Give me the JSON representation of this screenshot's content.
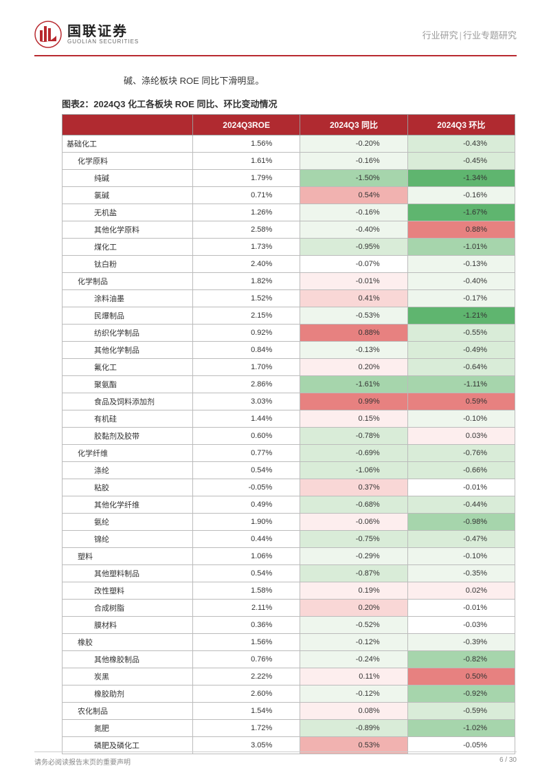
{
  "header": {
    "logo_cn": "国联证券",
    "logo_en": "GUOLIAN SECURITIES",
    "right_a": "行业研究",
    "right_b": "行业专题研究"
  },
  "intro": "碱、涤纶板块 ROE 同比下滑明显。",
  "chart_title": "图表2：2024Q3 化工各板块 ROE 同比、环比变动情况",
  "columns": [
    "",
    "2024Q3ROE",
    "2024Q3 同比",
    "2024Q3 环比"
  ],
  "colors": {
    "header_bg": "#b02a30",
    "heat": {
      "neg_strong": "#5fb56f",
      "neg_mid": "#a6d5ac",
      "neg_light": "#d9ecd8",
      "neg_faint": "#eef6ed",
      "neutral": "#ffffff",
      "pos_faint": "#fdeeee",
      "pos_light": "#f9d7d6",
      "pos_mid": "#f1b2b0",
      "pos_strong": "#e78180"
    }
  },
  "rows": [
    {
      "name": "基础化工",
      "indent": 0,
      "roe": "1.56%",
      "yoy": "-0.20%",
      "yoy_c": "neg_faint",
      "qoq": "-0.43%",
      "qoq_c": "neg_light"
    },
    {
      "name": "化学原料",
      "indent": 1,
      "roe": "1.61%",
      "yoy": "-0.16%",
      "yoy_c": "neg_faint",
      "qoq": "-0.45%",
      "qoq_c": "neg_light"
    },
    {
      "name": "纯碱",
      "indent": 2,
      "roe": "1.79%",
      "yoy": "-1.50%",
      "yoy_c": "neg_mid",
      "qoq": "-1.34%",
      "qoq_c": "neg_strong"
    },
    {
      "name": "氯碱",
      "indent": 2,
      "roe": "0.71%",
      "yoy": "0.54%",
      "yoy_c": "pos_mid",
      "qoq": "-0.16%",
      "qoq_c": "neg_faint"
    },
    {
      "name": "无机盐",
      "indent": 2,
      "roe": "1.26%",
      "yoy": "-0.16%",
      "yoy_c": "neg_faint",
      "qoq": "-1.67%",
      "qoq_c": "neg_strong"
    },
    {
      "name": "其他化学原料",
      "indent": 2,
      "roe": "2.58%",
      "yoy": "-0.40%",
      "yoy_c": "neg_faint",
      "qoq": "0.88%",
      "qoq_c": "pos_strong"
    },
    {
      "name": "煤化工",
      "indent": 2,
      "roe": "1.73%",
      "yoy": "-0.95%",
      "yoy_c": "neg_light",
      "qoq": "-1.01%",
      "qoq_c": "neg_mid"
    },
    {
      "name": "钛白粉",
      "indent": 2,
      "roe": "2.40%",
      "yoy": "-0.07%",
      "yoy_c": "neutral",
      "qoq": "-0.13%",
      "qoq_c": "neg_faint"
    },
    {
      "name": "化学制品",
      "indent": 1,
      "roe": "1.82%",
      "yoy": "-0.01%",
      "yoy_c": "pos_faint",
      "qoq": "-0.40%",
      "qoq_c": "neg_faint"
    },
    {
      "name": "涂料油墨",
      "indent": 2,
      "roe": "1.52%",
      "yoy": "0.41%",
      "yoy_c": "pos_light",
      "qoq": "-0.17%",
      "qoq_c": "neg_faint"
    },
    {
      "name": "民爆制品",
      "indent": 2,
      "roe": "2.15%",
      "yoy": "-0.53%",
      "yoy_c": "neg_faint",
      "qoq": "-1.21%",
      "qoq_c": "neg_strong"
    },
    {
      "name": "纺织化学制品",
      "indent": 2,
      "roe": "0.92%",
      "yoy": "0.88%",
      "yoy_c": "pos_strong",
      "qoq": "-0.55%",
      "qoq_c": "neg_light"
    },
    {
      "name": "其他化学制品",
      "indent": 2,
      "roe": "0.84%",
      "yoy": "-0.13%",
      "yoy_c": "neg_faint",
      "qoq": "-0.49%",
      "qoq_c": "neg_light"
    },
    {
      "name": "氟化工",
      "indent": 2,
      "roe": "1.70%",
      "yoy": "0.20%",
      "yoy_c": "pos_faint",
      "qoq": "-0.64%",
      "qoq_c": "neg_light"
    },
    {
      "name": "聚氨酯",
      "indent": 2,
      "roe": "2.86%",
      "yoy": "-1.61%",
      "yoy_c": "neg_mid",
      "qoq": "-1.11%",
      "qoq_c": "neg_mid"
    },
    {
      "name": "食品及饲料添加剂",
      "indent": 2,
      "roe": "3.03%",
      "yoy": "0.99%",
      "yoy_c": "pos_strong",
      "qoq": "0.59%",
      "qoq_c": "pos_strong"
    },
    {
      "name": "有机硅",
      "indent": 2,
      "roe": "1.44%",
      "yoy": "0.15%",
      "yoy_c": "pos_faint",
      "qoq": "-0.10%",
      "qoq_c": "neg_faint"
    },
    {
      "name": "胶黏剂及胶带",
      "indent": 2,
      "roe": "0.60%",
      "yoy": "-0.78%",
      "yoy_c": "neg_light",
      "qoq": "0.03%",
      "qoq_c": "pos_faint"
    },
    {
      "name": "化学纤维",
      "indent": 1,
      "roe": "0.77%",
      "yoy": "-0.69%",
      "yoy_c": "neg_light",
      "qoq": "-0.76%",
      "qoq_c": "neg_light"
    },
    {
      "name": "涤纶",
      "indent": 2,
      "roe": "0.54%",
      "yoy": "-1.06%",
      "yoy_c": "neg_light",
      "qoq": "-0.66%",
      "qoq_c": "neg_light"
    },
    {
      "name": "粘胶",
      "indent": 2,
      "roe": "-0.05%",
      "yoy": "0.37%",
      "yoy_c": "pos_light",
      "qoq": "-0.01%",
      "qoq_c": "neutral"
    },
    {
      "name": "其他化学纤维",
      "indent": 2,
      "roe": "0.49%",
      "yoy": "-0.68%",
      "yoy_c": "neg_light",
      "qoq": "-0.44%",
      "qoq_c": "neg_light"
    },
    {
      "name": "氨纶",
      "indent": 2,
      "roe": "1.90%",
      "yoy": "-0.06%",
      "yoy_c": "pos_faint",
      "qoq": "-0.98%",
      "qoq_c": "neg_mid"
    },
    {
      "name": "锦纶",
      "indent": 2,
      "roe": "0.44%",
      "yoy": "-0.75%",
      "yoy_c": "neg_light",
      "qoq": "-0.47%",
      "qoq_c": "neg_light"
    },
    {
      "name": "塑料",
      "indent": 1,
      "roe": "1.06%",
      "yoy": "-0.29%",
      "yoy_c": "neg_faint",
      "qoq": "-0.10%",
      "qoq_c": "neg_faint"
    },
    {
      "name": "其他塑料制品",
      "indent": 2,
      "roe": "0.54%",
      "yoy": "-0.87%",
      "yoy_c": "neg_light",
      "qoq": "-0.35%",
      "qoq_c": "neg_faint"
    },
    {
      "name": "改性塑料",
      "indent": 2,
      "roe": "1.58%",
      "yoy": "0.19%",
      "yoy_c": "pos_faint",
      "qoq": "0.02%",
      "qoq_c": "pos_faint"
    },
    {
      "name": "合成树脂",
      "indent": 2,
      "roe": "2.11%",
      "yoy": "0.20%",
      "yoy_c": "pos_light",
      "qoq": "-0.01%",
      "qoq_c": "neutral"
    },
    {
      "name": "膜材料",
      "indent": 2,
      "roe": "0.36%",
      "yoy": "-0.52%",
      "yoy_c": "neg_faint",
      "qoq": "-0.03%",
      "qoq_c": "neutral"
    },
    {
      "name": "橡胶",
      "indent": 1,
      "roe": "1.56%",
      "yoy": "-0.12%",
      "yoy_c": "neg_faint",
      "qoq": "-0.39%",
      "qoq_c": "neg_faint"
    },
    {
      "name": "其他橡胶制品",
      "indent": 2,
      "roe": "0.76%",
      "yoy": "-0.24%",
      "yoy_c": "neg_faint",
      "qoq": "-0.82%",
      "qoq_c": "neg_mid"
    },
    {
      "name": "炭黑",
      "indent": 2,
      "roe": "2.22%",
      "yoy": "0.11%",
      "yoy_c": "pos_faint",
      "qoq": "0.50%",
      "qoq_c": "pos_strong"
    },
    {
      "name": "橡胶助剂",
      "indent": 2,
      "roe": "2.60%",
      "yoy": "-0.12%",
      "yoy_c": "neg_faint",
      "qoq": "-0.92%",
      "qoq_c": "neg_mid"
    },
    {
      "name": "农化制品",
      "indent": 1,
      "roe": "1.54%",
      "yoy": "0.08%",
      "yoy_c": "pos_faint",
      "qoq": "-0.59%",
      "qoq_c": "neg_light"
    },
    {
      "name": "氮肥",
      "indent": 2,
      "roe": "1.72%",
      "yoy": "-0.89%",
      "yoy_c": "neg_light",
      "qoq": "-1.02%",
      "qoq_c": "neg_mid"
    },
    {
      "name": "磷肥及磷化工",
      "indent": 2,
      "roe": "3.05%",
      "yoy": "0.53%",
      "yoy_c": "pos_mid",
      "qoq": "-0.05%",
      "qoq_c": "neutral"
    }
  ],
  "footer": {
    "left": "请务必阅读报告末页的重要声明",
    "page": "6 / 30"
  }
}
